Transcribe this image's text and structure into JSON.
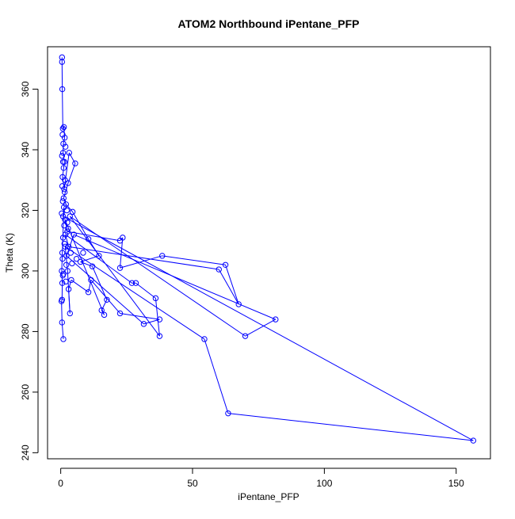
{
  "chart_data": {
    "type": "line",
    "title": "ATOM2 Northbound iPentane_PFP",
    "xlabel": "iPentane_PFP",
    "ylabel": "Theta (K)",
    "xlim": [
      -5,
      163
    ],
    "ylim": [
      238,
      374
    ],
    "x_ticks": [
      0,
      50,
      100,
      150
    ],
    "y_ticks": [
      240,
      260,
      280,
      300,
      320,
      340,
      360
    ],
    "series_color": "#0000ff",
    "marker": "open-circle",
    "points": [
      {
        "x": 0.5,
        "y": 370.5
      },
      {
        "x": 0.5,
        "y": 369
      },
      {
        "x": 0.6,
        "y": 360
      },
      {
        "x": 0.8,
        "y": 347
      },
      {
        "x": 1.2,
        "y": 347.5
      },
      {
        "x": 1.5,
        "y": 344
      },
      {
        "x": 1.0,
        "y": 342
      },
      {
        "x": 0.9,
        "y": 339
      },
      {
        "x": 1.4,
        "y": 336
      },
      {
        "x": 0.7,
        "y": 331
      },
      {
        "x": 1.3,
        "y": 327
      },
      {
        "x": 3.2,
        "y": 339
      },
      {
        "x": 5.5,
        "y": 335.5
      },
      {
        "x": 2.8,
        "y": 329
      },
      {
        "x": 1.1,
        "y": 324
      },
      {
        "x": 2.0,
        "y": 322
      },
      {
        "x": 4.5,
        "y": 319.5
      },
      {
        "x": 10.5,
        "y": 310.5
      },
      {
        "x": 14.5,
        "y": 305
      },
      {
        "x": 7.5,
        "y": 303
      },
      {
        "x": 12.0,
        "y": 301.5
      },
      {
        "x": 17.5,
        "y": 290.5
      },
      {
        "x": 15.5,
        "y": 287
      },
      {
        "x": 16.5,
        "y": 285.5
      },
      {
        "x": 1.6,
        "y": 317
      },
      {
        "x": 2.5,
        "y": 313
      },
      {
        "x": 22.5,
        "y": 310
      },
      {
        "x": 23.5,
        "y": 311
      },
      {
        "x": 22.5,
        "y": 301
      },
      {
        "x": 38.5,
        "y": 305
      },
      {
        "x": 62.5,
        "y": 302
      },
      {
        "x": 67.5,
        "y": 289
      },
      {
        "x": 60.0,
        "y": 300.5
      },
      {
        "x": 3.0,
        "y": 308
      },
      {
        "x": 1.8,
        "y": 312
      },
      {
        "x": 27.0,
        "y": 296
      },
      {
        "x": 28.5,
        "y": 296
      },
      {
        "x": 36.0,
        "y": 291
      },
      {
        "x": 37.5,
        "y": 278.5
      },
      {
        "x": 3.5,
        "y": 318
      },
      {
        "x": 70.0,
        "y": 278.5
      },
      {
        "x": 81.5,
        "y": 284
      },
      {
        "x": 5.0,
        "y": 312
      },
      {
        "x": 2.2,
        "y": 305
      },
      {
        "x": 31.5,
        "y": 282.5
      },
      {
        "x": 37.5,
        "y": 284
      },
      {
        "x": 22.5,
        "y": 286
      },
      {
        "x": 11.5,
        "y": 297
      },
      {
        "x": 10.5,
        "y": 293
      },
      {
        "x": 4.0,
        "y": 297
      },
      {
        "x": 3.0,
        "y": 294
      },
      {
        "x": 3.5,
        "y": 286
      },
      {
        "x": 2.6,
        "y": 300
      },
      {
        "x": 1.7,
        "y": 308
      },
      {
        "x": 54.5,
        "y": 277.5
      },
      {
        "x": 63.5,
        "y": 253
      },
      {
        "x": 156.5,
        "y": 244
      },
      {
        "x": 0.9,
        "y": 318
      },
      {
        "x": 1.2,
        "y": 321
      },
      {
        "x": 0.6,
        "y": 306
      },
      {
        "x": 0.4,
        "y": 300
      },
      {
        "x": 0.6,
        "y": 296
      },
      {
        "x": 0.5,
        "y": 290.5
      },
      {
        "x": 0.3,
        "y": 290
      },
      {
        "x": 0.5,
        "y": 283
      },
      {
        "x": 1.0,
        "y": 277.5
      }
    ],
    "extra_points": [
      {
        "x": 0.7,
        "y": 345
      },
      {
        "x": 1.8,
        "y": 341
      },
      {
        "x": 0.5,
        "y": 338
      },
      {
        "x": 1.1,
        "y": 334
      },
      {
        "x": 0.6,
        "y": 328
      },
      {
        "x": 1.5,
        "y": 326
      },
      {
        "x": 0.8,
        "y": 323
      },
      {
        "x": 2.3,
        "y": 320
      },
      {
        "x": 0.4,
        "y": 319
      },
      {
        "x": 1.3,
        "y": 315
      },
      {
        "x": 2.8,
        "y": 314
      },
      {
        "x": 0.9,
        "y": 311
      },
      {
        "x": 1.4,
        "y": 309
      },
      {
        "x": 3.8,
        "y": 306
      },
      {
        "x": 0.7,
        "y": 304
      },
      {
        "x": 2.1,
        "y": 302
      },
      {
        "x": 1.0,
        "y": 299
      },
      {
        "x": 4.3,
        "y": 302.5
      },
      {
        "x": 6.0,
        "y": 304
      },
      {
        "x": 8.5,
        "y": 306
      },
      {
        "x": 1.9,
        "y": 296.5
      },
      {
        "x": 0.8,
        "y": 298.5
      },
      {
        "x": 2.5,
        "y": 316
      },
      {
        "x": 1.6,
        "y": 330
      },
      {
        "x": 0.9,
        "y": 336
      }
    ]
  }
}
